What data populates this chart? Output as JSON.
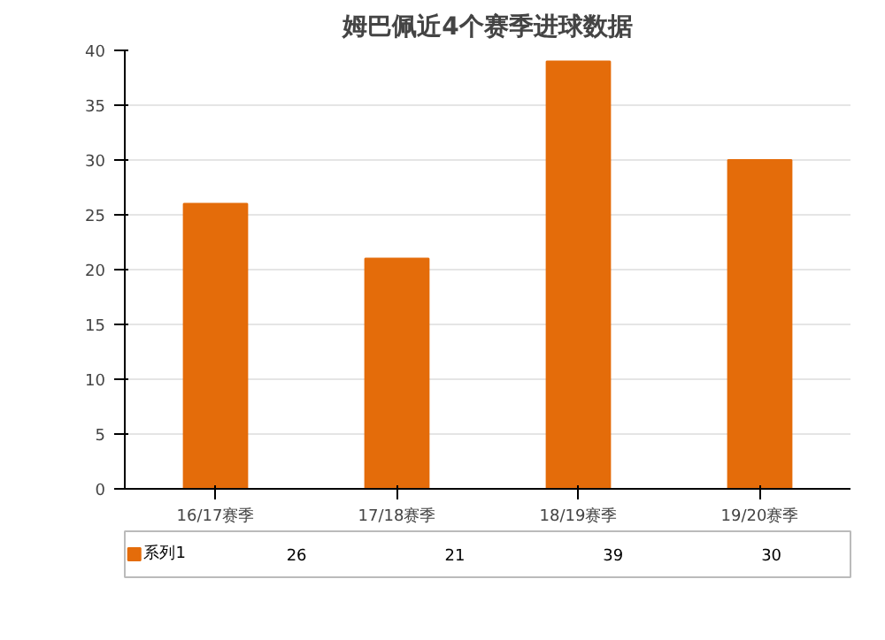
{
  "chart_data": {
    "type": "bar",
    "title": "姆巴佩近4个赛季进球数据",
    "categories": [
      "16/17赛季",
      "17/18赛季",
      "18/19赛季",
      "19/20赛季"
    ],
    "series": [
      {
        "name": "系列1",
        "color": "#e46c0a",
        "values": [
          26,
          21,
          39,
          30
        ]
      }
    ],
    "ylim": [
      0,
      40
    ],
    "yticks": [
      0,
      5,
      10,
      15,
      20,
      25,
      30,
      35,
      40
    ],
    "grid": "y",
    "data_labels": true
  }
}
